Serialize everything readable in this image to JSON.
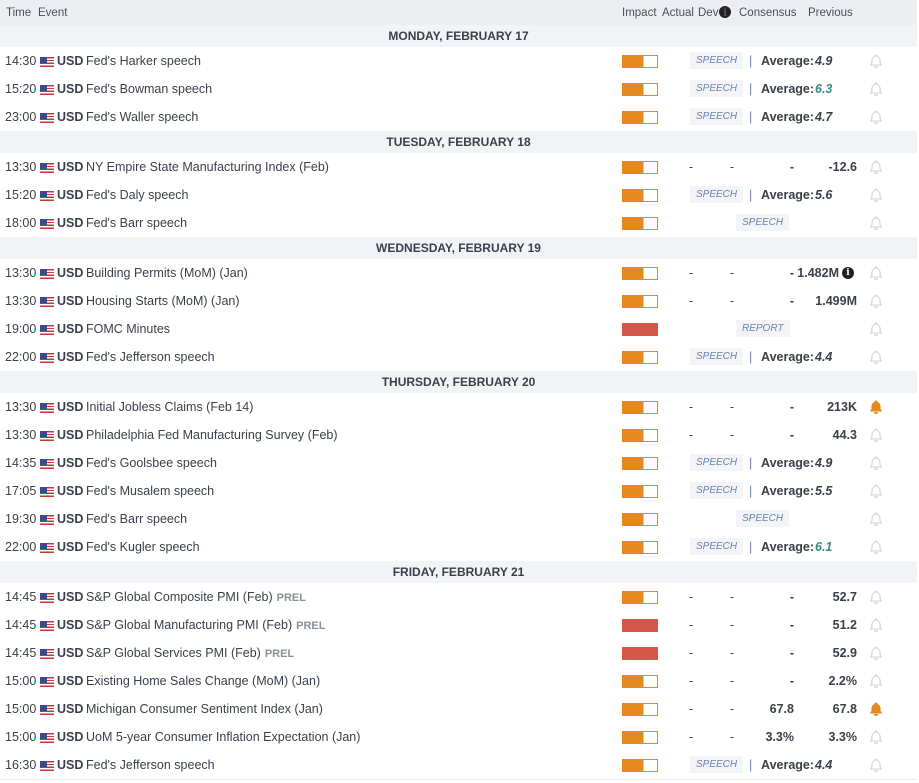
{
  "header": {
    "time": "Time",
    "event": "Event",
    "impact": "Impact",
    "actual": "Actual",
    "dev": "Dev",
    "dev_info_icon": "i",
    "consensus": "Consensus",
    "previous": "Previous"
  },
  "colors": {
    "medium": "#e3891e",
    "high": "#d4574a",
    "bell_active": "#e3891e",
    "bell_inactive": "#cfd2d8",
    "positive": "#3a8a86"
  },
  "average_label": "Average:",
  "days": [
    {
      "title": "MONDAY, FEBRUARY 17",
      "events": [
        {
          "time": "14:30",
          "currency": "USD",
          "name": "Fed's Harker speech",
          "impact": "medium",
          "badge": "SPEECH",
          "average": "4.9"
        },
        {
          "time": "15:20",
          "currency": "USD",
          "name": "Fed's Bowman speech",
          "impact": "medium",
          "badge": "SPEECH",
          "average": "6.3",
          "avg_color": "#3a8a86"
        },
        {
          "time": "23:00",
          "currency": "USD",
          "name": "Fed's Waller speech",
          "impact": "medium",
          "badge": "SPEECH",
          "average": "4.7"
        }
      ]
    },
    {
      "title": "TUESDAY, FEBRUARY 18",
      "events": [
        {
          "time": "13:30",
          "currency": "USD",
          "name": "NY Empire State Manufacturing Index (Feb)",
          "impact": "medium",
          "actual": "-",
          "dev": "-",
          "consensus": "-",
          "previous": "-12.6"
        },
        {
          "time": "15:20",
          "currency": "USD",
          "name": "Fed's Daly speech",
          "impact": "medium",
          "badge": "SPEECH",
          "average": "5.6"
        },
        {
          "time": "18:00",
          "currency": "USD",
          "name": "Fed's Barr speech",
          "impact": "medium",
          "badge_only": "SPEECH"
        }
      ]
    },
    {
      "title": "WEDNESDAY, FEBRUARY 19",
      "events": [
        {
          "time": "13:30",
          "currency": "USD",
          "name": "Building Permits (MoM) (Jan)",
          "impact": "medium",
          "actual": "-",
          "dev": "-",
          "consensus": "-",
          "previous": "1.482M",
          "previous_info": "i"
        },
        {
          "time": "13:30",
          "currency": "USD",
          "name": "Housing Starts (MoM) (Jan)",
          "impact": "medium",
          "actual": "-",
          "dev": "-",
          "consensus": "-",
          "previous": "1.499M"
        },
        {
          "time": "19:00",
          "currency": "USD",
          "name": "FOMC Minutes",
          "impact": "high",
          "badge_only": "REPORT"
        },
        {
          "time": "22:00",
          "currency": "USD",
          "name": "Fed's Jefferson speech",
          "impact": "medium",
          "badge": "SPEECH",
          "average": "4.4"
        }
      ]
    },
    {
      "title": "THURSDAY, FEBRUARY 20",
      "events": [
        {
          "time": "13:30",
          "currency": "USD",
          "name": "Initial Jobless Claims (Feb 14)",
          "impact": "medium",
          "actual": "-",
          "dev": "-",
          "consensus": "-",
          "previous": "213K",
          "alert": true
        },
        {
          "time": "13:30",
          "currency": "USD",
          "name": "Philadelphia Fed Manufacturing Survey (Feb)",
          "impact": "medium",
          "actual": "-",
          "dev": "-",
          "consensus": "-",
          "previous": "44.3"
        },
        {
          "time": "14:35",
          "currency": "USD",
          "name": "Fed's Goolsbee speech",
          "impact": "medium",
          "badge": "SPEECH",
          "average": "4.9"
        },
        {
          "time": "17:05",
          "currency": "USD",
          "name": "Fed's Musalem speech",
          "impact": "medium",
          "badge": "SPEECH",
          "average": "5.5"
        },
        {
          "time": "19:30",
          "currency": "USD",
          "name": "Fed's Barr speech",
          "impact": "medium",
          "badge_only": "SPEECH"
        },
        {
          "time": "22:00",
          "currency": "USD",
          "name": "Fed's Kugler speech",
          "impact": "medium",
          "badge": "SPEECH",
          "average": "6.1",
          "avg_color": "#3a8a86"
        }
      ]
    },
    {
      "title": "FRIDAY, FEBRUARY 21",
      "events": [
        {
          "time": "14:45",
          "currency": "USD",
          "name": "S&P Global Composite PMI (Feb)",
          "tag": "PREL",
          "impact": "medium",
          "actual": "-",
          "dev": "-",
          "consensus": "-",
          "previous": "52.7"
        },
        {
          "time": "14:45",
          "currency": "USD",
          "name": "S&P Global Manufacturing PMI (Feb)",
          "tag": "PREL",
          "impact": "high",
          "actual": "-",
          "dev": "-",
          "consensus": "-",
          "previous": "51.2"
        },
        {
          "time": "14:45",
          "currency": "USD",
          "name": "S&P Global Services PMI (Feb)",
          "tag": "PREL",
          "impact": "high",
          "actual": "-",
          "dev": "-",
          "consensus": "-",
          "previous": "52.9"
        },
        {
          "time": "15:00",
          "currency": "USD",
          "name": "Existing Home Sales Change (MoM) (Jan)",
          "impact": "medium",
          "actual": "-",
          "dev": "-",
          "consensus": "-",
          "previous": "2.2%"
        },
        {
          "time": "15:00",
          "currency": "USD",
          "name": "Michigan Consumer Sentiment Index (Jan)",
          "impact": "medium",
          "actual": "-",
          "dev": "-",
          "consensus": "67.8",
          "previous": "67.8",
          "alert": true
        },
        {
          "time": "15:00",
          "currency": "USD",
          "name": "UoM 5-year Consumer Inflation Expectation (Jan)",
          "impact": "medium",
          "actual": "-",
          "dev": "-",
          "consensus": "3.3%",
          "previous": "3.3%"
        },
        {
          "time": "16:30",
          "currency": "USD",
          "name": "Fed's Jefferson speech",
          "impact": "medium",
          "badge": "SPEECH",
          "average": "4.4"
        }
      ]
    }
  ]
}
